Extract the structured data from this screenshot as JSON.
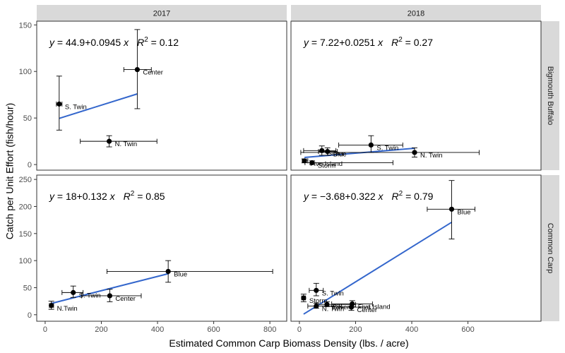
{
  "chart_data": {
    "type": "scatter",
    "xlabel": "Estimated Common Carp Biomass Density (lbs. / acre)",
    "ylabel": "Catch per Unit Effort (fish/hour)",
    "xlim": [
      -30,
      860
    ],
    "x_ticks": [
      0,
      200,
      400,
      600,
      800
    ],
    "x_tick_labels": [
      "0",
      "200",
      "400",
      "600",
      "800"
    ],
    "grid": false,
    "col_facets": [
      "2017",
      "2018"
    ],
    "row_facets": [
      "Bigmouth Buffalo",
      "Common Carp"
    ],
    "colors": {
      "points": "#000000",
      "errorbars": "#000000",
      "fit_line": "#3366cc",
      "strip_bg": "#d9d9d9",
      "panel_border": "#333333"
    },
    "panels": [
      {
        "col": "2017",
        "row": "Bigmouth Buffalo",
        "ylim": [
          -6,
          154
        ],
        "y_ticks": [
          0,
          50,
          100,
          150
        ],
        "y_tick_labels": [
          "0",
          "50",
          "100",
          "150"
        ],
        "equation": {
          "y": "y",
          "eq": " = 44.9",
          "plus": "+",
          "slope": "0.0945",
          "x": " x",
          "r": "R",
          "sq": "2",
          "r2": " = 0.12"
        },
        "fit": {
          "intercept": 44.9,
          "slope": 0.0945,
          "x_range": [
            50,
            328
          ]
        },
        "points": [
          {
            "label": "S. Twin",
            "x": 50,
            "y": 65,
            "x_err": [
              40,
              60
            ],
            "y_err": [
              37,
              95
            ]
          },
          {
            "label": "N. Twin",
            "x": 228,
            "y": 25,
            "x_err": [
              125,
              398
            ],
            "y_err": [
              19,
              31
            ]
          },
          {
            "label": "Center",
            "x": 328,
            "y": 102,
            "x_err": [
              280,
              378
            ],
            "y_err": [
              60,
              145
            ]
          }
        ]
      },
      {
        "col": "2018",
        "row": "Bigmouth Buffalo",
        "ylim": [
          -6,
          154
        ],
        "y_ticks": [
          0,
          50,
          100,
          150
        ],
        "y_tick_labels": [
          "0",
          "50",
          "100",
          "150"
        ],
        "equation": {
          "y": "y",
          "eq": " = 7.22",
          "plus": "+",
          "slope": "0.0251",
          "x": " x",
          "r": "R",
          "sq": "2",
          "r2": " = 0.27"
        },
        "fit": {
          "intercept": 7.22,
          "slope": 0.0251,
          "x_range": [
            18,
            410
          ]
        },
        "points": [
          {
            "label": "Five Island",
            "x": 18,
            "y": 4,
            "x_err": [
              10,
              30
            ],
            "y_err": [
              2,
              6
            ]
          },
          {
            "label": "Storm",
            "x": 45,
            "y": 2,
            "x_err": [
              20,
              333
            ],
            "y_err": [
              0,
              4
            ]
          },
          {
            "label": "Silver",
            "x": 80,
            "y": 15,
            "x_err": [
              15,
              130
            ],
            "y_err": [
              10,
              20
            ]
          },
          {
            "label": "Blue",
            "x": 100,
            "y": 14,
            "x_err": [
              68,
              135
            ],
            "y_err": [
              10,
              18
            ]
          },
          {
            "label": "S. Twin",
            "x": 255,
            "y": 21,
            "x_err": [
              140,
              368
            ],
            "y_err": [
              13,
              31
            ]
          },
          {
            "label": "N. Twin",
            "x": 410,
            "y": 13,
            "x_err": [
              5,
              640
            ],
            "y_err": [
              8,
              18
            ]
          }
        ]
      },
      {
        "col": "2017",
        "row": "Common Carp",
        "ylim": [
          -12,
          258
        ],
        "y_ticks": [
          0,
          50,
          100,
          150,
          200,
          250
        ],
        "y_tick_labels": [
          "0",
          "50",
          "100",
          "150",
          "200",
          "250"
        ],
        "equation": {
          "y": "y",
          "eq": " = 18",
          "plus": "+",
          "slope": "0.132",
          "x": " x",
          "r": "R",
          "sq": "2",
          "r2": " = 0.85"
        },
        "fit": {
          "intercept": 18,
          "slope": 0.132,
          "x_range": [
            20,
            440
          ]
        },
        "points": [
          {
            "label": "N.Twin",
            "x": 22,
            "y": 17,
            "x_err": [
              15,
              30
            ],
            "y_err": [
              10,
              25
            ]
          },
          {
            "label": "S. Twin",
            "x": 100,
            "y": 41,
            "x_err": [
              60,
              135
            ],
            "y_err": [
              32,
              53
            ]
          },
          {
            "label": "Center",
            "x": 230,
            "y": 35,
            "x_err": [
              130,
              342
            ],
            "y_err": [
              24,
              47
            ]
          },
          {
            "label": "Blue",
            "x": 438,
            "y": 80,
            "x_err": [
              220,
              810
            ],
            "y_err": [
              60,
              100
            ]
          }
        ]
      },
      {
        "col": "2018",
        "row": "Common Carp",
        "ylim": [
          -12,
          258
        ],
        "y_ticks": [
          0,
          50,
          100,
          150,
          200,
          250
        ],
        "y_tick_labels": [
          "0",
          "50",
          "100",
          "150",
          "200",
          "250"
        ],
        "equation": {
          "y": "y",
          "eq": " = −3.68",
          "plus": "+",
          "slope": "0.322",
          "x": " x",
          "r": "R",
          "sq": "2",
          "r2": " = 0.79"
        },
        "fit": {
          "intercept": -3.68,
          "slope": 0.322,
          "x_range": [
            15,
            542
          ]
        },
        "points": [
          {
            "label": "Storm",
            "x": 15,
            "y": 31,
            "x_err": [
              8,
              22
            ],
            "y_err": [
              24,
              38
            ]
          },
          {
            "label": "S. Twin",
            "x": 60,
            "y": 45,
            "x_err": [
              35,
              85
            ],
            "y_err": [
              35,
              58
            ]
          },
          {
            "label": "N. Twin",
            "x": 60,
            "y": 16,
            "x_err": [
              30,
              150
            ],
            "y_err": [
              12,
              21
            ]
          },
          {
            "label": "Silver",
            "x": 98,
            "y": 19,
            "x_err": [
              60,
              200
            ],
            "y_err": [
              15,
              24
            ]
          },
          {
            "label": "Five Island",
            "x": 188,
            "y": 20,
            "x_err": [
              115,
              260
            ],
            "y_err": [
              15,
              26
            ]
          },
          {
            "label": "Center",
            "x": 185,
            "y": 14,
            "x_err": [
              120,
              250
            ],
            "y_err": [
              8,
              20
            ]
          },
          {
            "label": "Blue",
            "x": 542,
            "y": 195,
            "x_err": [
              455,
              625
            ],
            "y_err": [
              140,
              248
            ]
          }
        ]
      }
    ]
  }
}
